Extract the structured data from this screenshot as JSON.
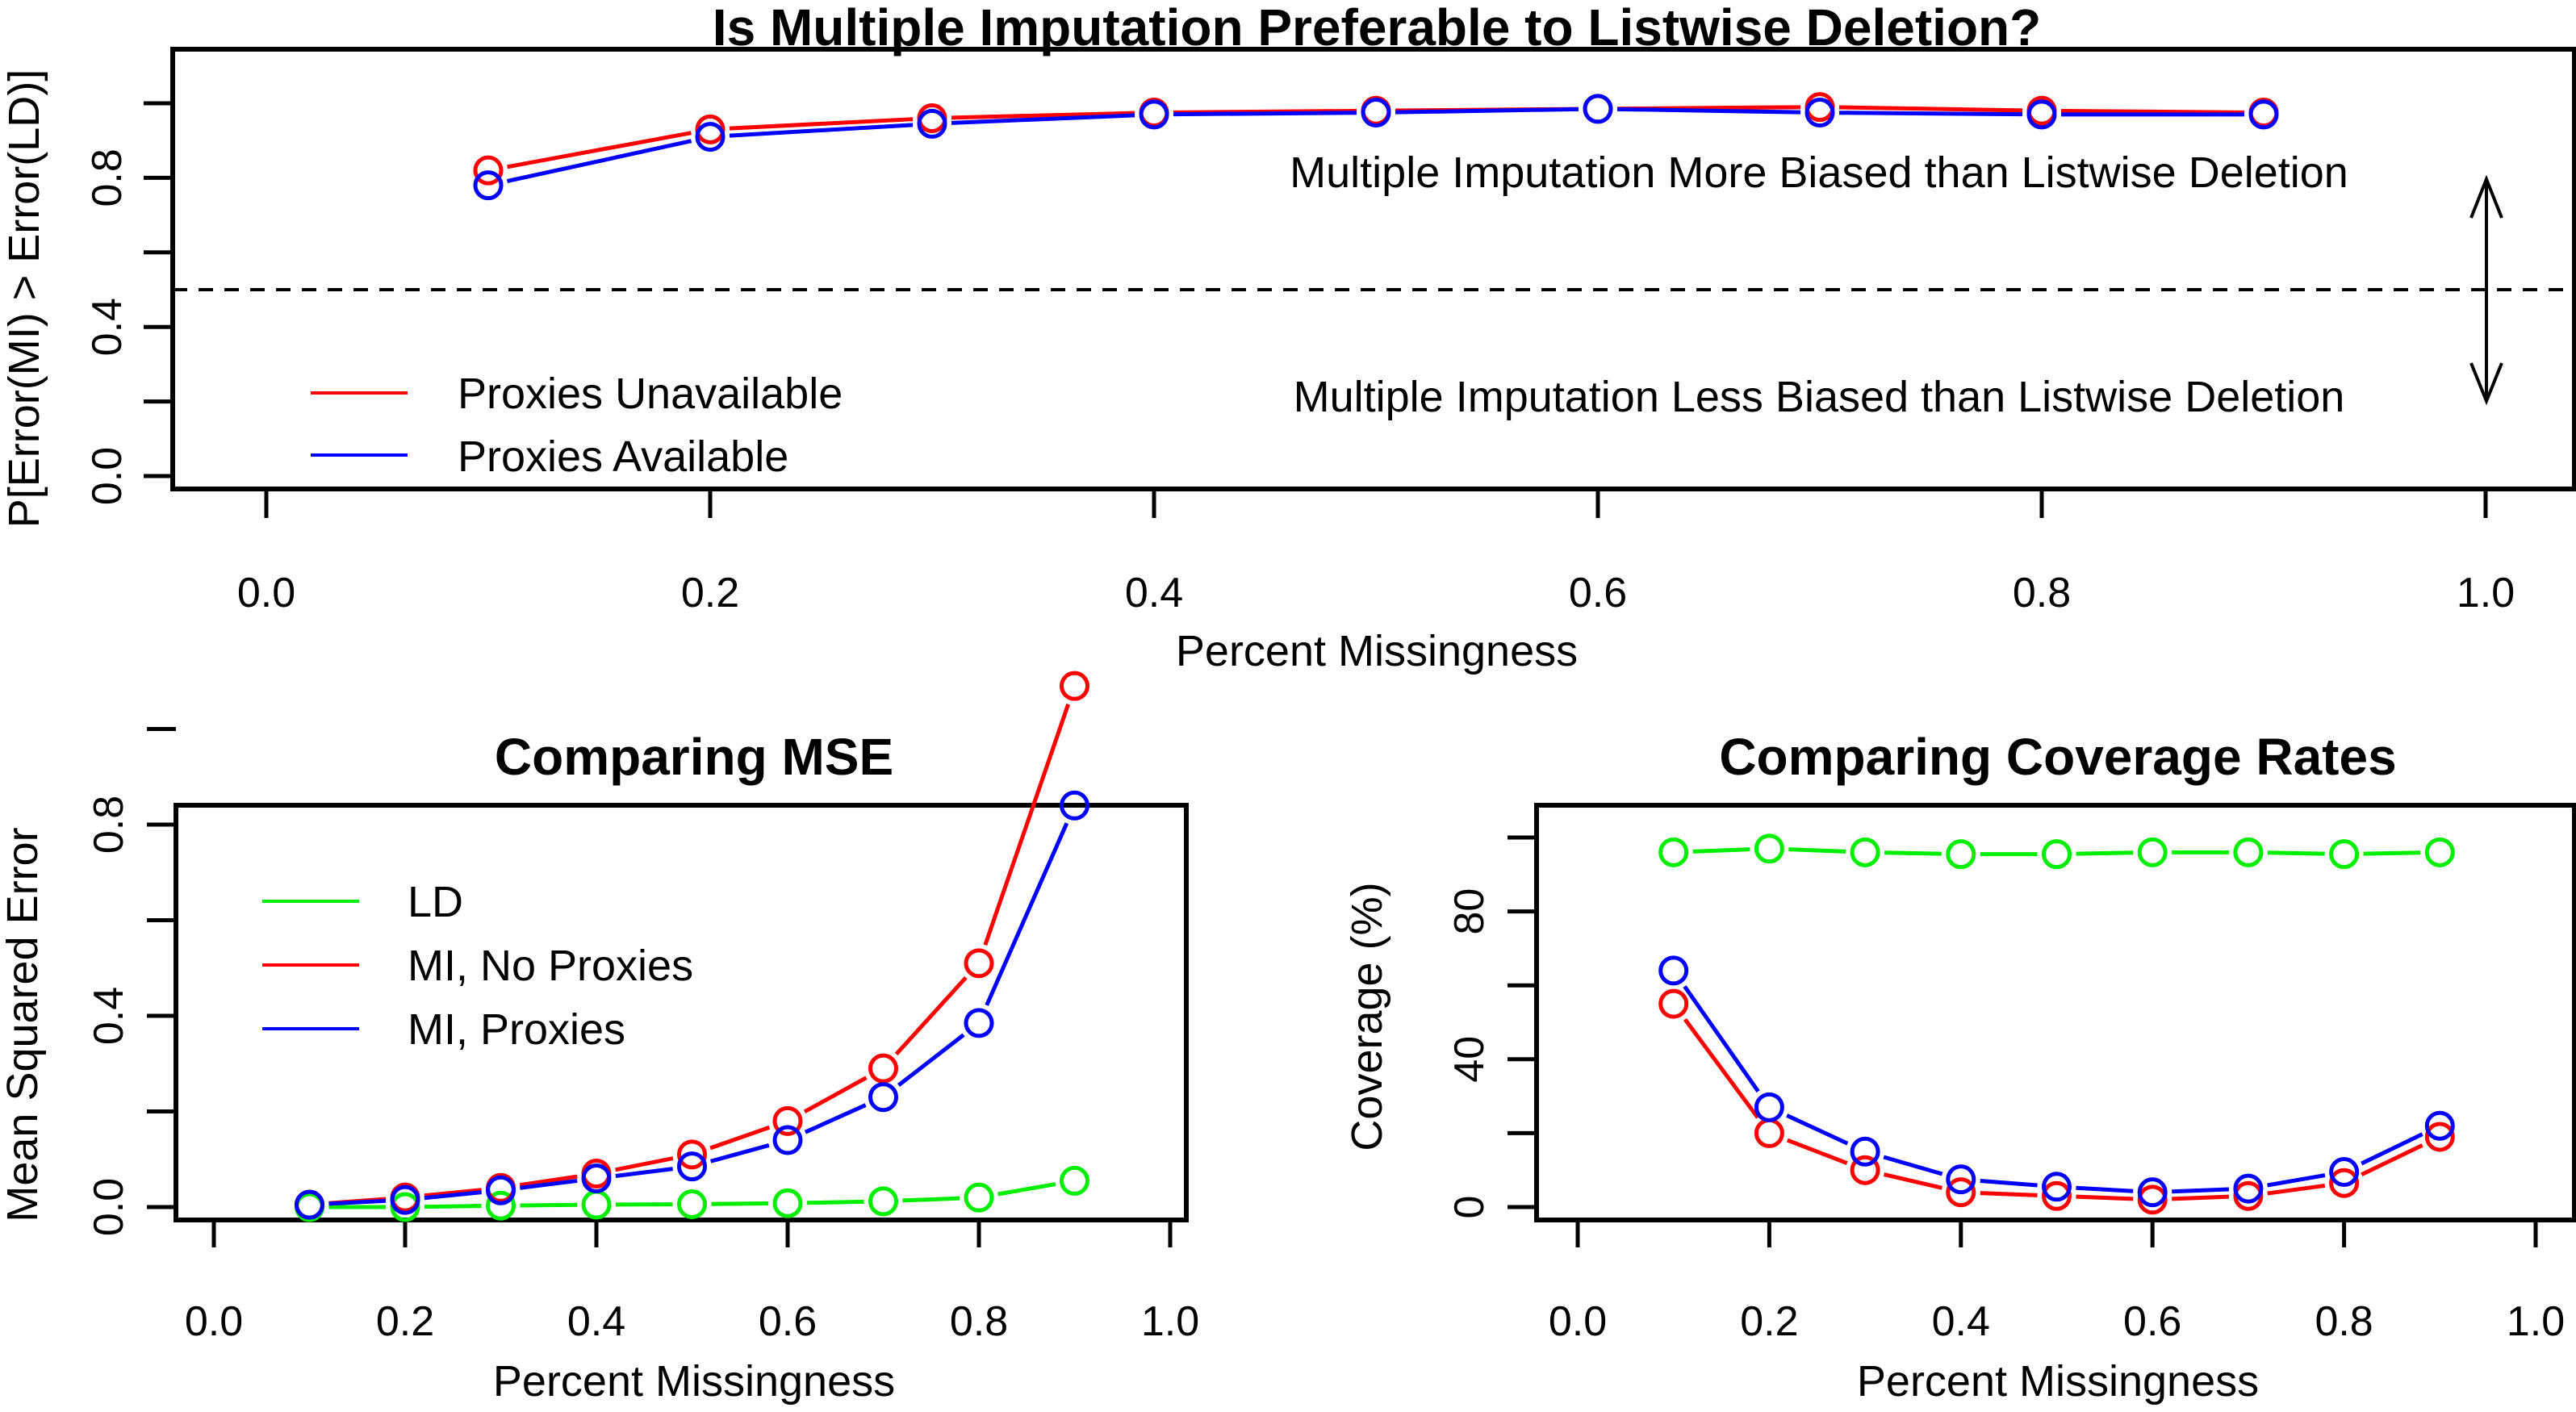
{
  "chart_data": [
    {
      "id": "top",
      "type": "line",
      "title": "Is Multiple Imputation Preferable to Listwise Deletion?",
      "xlabel": "Percent Missingness",
      "ylabel": "P[Error(MI) > Error(LD)]",
      "xlim": [
        0.0,
        1.0
      ],
      "ylim": [
        0.0,
        1.0
      ],
      "xticks": [
        "0.0",
        "0.2",
        "0.4",
        "0.6",
        "0.8",
        "1.0"
      ],
      "yticks": [
        0.0,
        0.2,
        0.4,
        0.6,
        0.8,
        1.0
      ],
      "ytick_labels": [
        "0.0",
        "",
        "0.4",
        "",
        "0.8",
        ""
      ],
      "x": [
        0.1,
        0.2,
        0.3,
        0.4,
        0.5,
        0.6,
        0.7,
        0.8,
        0.9
      ],
      "series": [
        {
          "name": "Proxies Unavailable",
          "color": "#ff0000",
          "values": [
            0.82,
            0.93,
            0.96,
            0.975,
            0.98,
            0.985,
            0.99,
            0.98,
            0.975
          ]
        },
        {
          "name": "Proxies Available",
          "color": "#0000ff",
          "values": [
            0.78,
            0.91,
            0.945,
            0.97,
            0.975,
            0.985,
            0.975,
            0.97,
            0.97
          ]
        }
      ],
      "reference_line": {
        "y": 0.5,
        "style": "dashed"
      },
      "annotations": [
        "Multiple Imputation More Biased than Listwise Deletion",
        "Multiple Imputation Less Biased than Listwise Deletion"
      ],
      "legend": "bottom-left",
      "grid": false
    },
    {
      "id": "mse",
      "type": "line",
      "title": "Comparing MSE",
      "xlabel": "Percent Missingness",
      "ylabel": "Mean Squared Error",
      "xlim": [
        0.0,
        1.0
      ],
      "ylim": [
        0.0,
        1.0
      ],
      "xticks": [
        "0.0",
        "0.2",
        "0.4",
        "0.6",
        "0.8",
        "1.0"
      ],
      "yticks": [
        0.0,
        0.2,
        0.4,
        0.6,
        0.8,
        1.0
      ],
      "ytick_labels": [
        "0.0",
        "",
        "0.4",
        "",
        "0.8",
        ""
      ],
      "x": [
        0.1,
        0.2,
        0.3,
        0.4,
        0.5,
        0.6,
        0.7,
        0.8,
        0.9
      ],
      "series": [
        {
          "name": "LD",
          "color": "#00ee00",
          "values": [
            0.0,
            0.0,
            0.003,
            0.005,
            0.006,
            0.008,
            0.012,
            0.02,
            0.055
          ]
        },
        {
          "name": "MI, No Proxies",
          "color": "#ff0000",
          "values": [
            0.005,
            0.02,
            0.04,
            0.07,
            0.11,
            0.18,
            0.29,
            0.51,
            1.09
          ]
        },
        {
          "name": "MI, Proxies",
          "color": "#0000ff",
          "values": [
            0.005,
            0.015,
            0.035,
            0.06,
            0.085,
            0.14,
            0.23,
            0.385,
            0.84
          ]
        }
      ],
      "legend": "top-left",
      "grid": false
    },
    {
      "id": "coverage",
      "type": "line",
      "title": "Comparing Coverage Rates",
      "xlabel": "Percent Missingness",
      "ylabel": "Coverage (%)",
      "xlim": [
        0.0,
        1.0
      ],
      "ylim": [
        0,
        100
      ],
      "xticks": [
        "0.0",
        "0.2",
        "0.4",
        "0.6",
        "0.8",
        "1.0"
      ],
      "yticks": [
        0,
        20,
        40,
        60,
        80,
        100
      ],
      "ytick_labels": [
        "0",
        "",
        "40",
        "",
        "80",
        ""
      ],
      "x": [
        0.1,
        0.2,
        0.3,
        0.4,
        0.5,
        0.6,
        0.7,
        0.8,
        0.9
      ],
      "series": [
        {
          "name": "LD",
          "color": "#00ee00",
          "values": [
            96,
            97,
            96,
            95.5,
            95.5,
            96,
            96,
            95.5,
            96
          ]
        },
        {
          "name": "MI, No Proxies",
          "color": "#ff0000",
          "values": [
            55,
            20,
            10,
            4,
            3,
            2,
            3,
            6.5,
            19
          ]
        },
        {
          "name": "MI, Proxies",
          "color": "#0000ff",
          "values": [
            64,
            27,
            15,
            7.5,
            5.5,
            4,
            5,
            9.5,
            22
          ]
        }
      ],
      "legend": "none",
      "grid": false
    }
  ]
}
